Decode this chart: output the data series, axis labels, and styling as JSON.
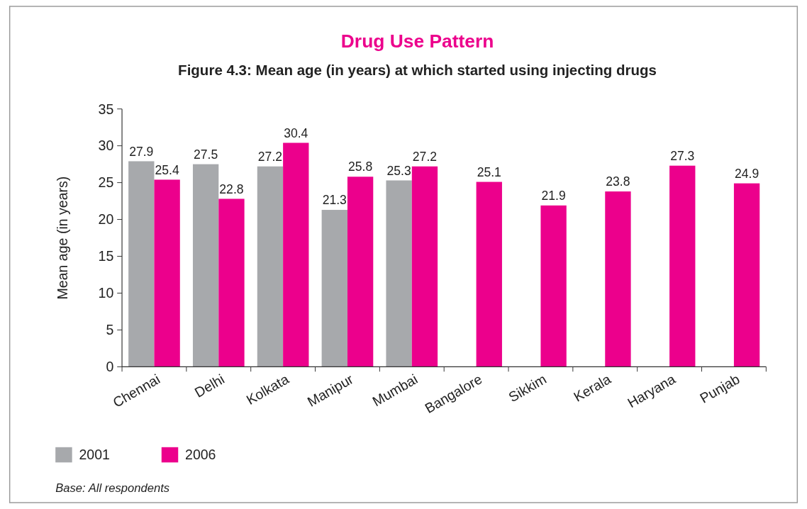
{
  "chart_data": {
    "type": "bar",
    "title": "Drug Use Pattern",
    "subtitle": "Figure 4.3: Mean age (in years) at which started using injecting drugs",
    "ylabel": "Mean age (in years)",
    "categories": [
      "Chennai",
      "Delhi",
      "Kolkata",
      "Manipur",
      "Mumbai",
      "Bangalore",
      "Sikkim",
      "Kerala",
      "Haryana",
      "Punjab"
    ],
    "series": [
      {
        "name": "2001",
        "color": "#a7a9ac",
        "values": [
          27.9,
          27.5,
          27.2,
          21.3,
          25.3,
          null,
          null,
          null,
          null,
          null
        ]
      },
      {
        "name": "2006",
        "color": "#ec008c",
        "values": [
          25.4,
          22.8,
          30.4,
          25.8,
          27.2,
          25.1,
          21.9,
          23.8,
          27.3,
          24.9
        ]
      }
    ],
    "ylim": [
      0,
      35
    ],
    "yticks": [
      0,
      5,
      10,
      15,
      20,
      25,
      30,
      35
    ],
    "grid": false,
    "legend": "bottom left",
    "data_labels": true,
    "annotations": [
      "Base: All respondents"
    ]
  }
}
